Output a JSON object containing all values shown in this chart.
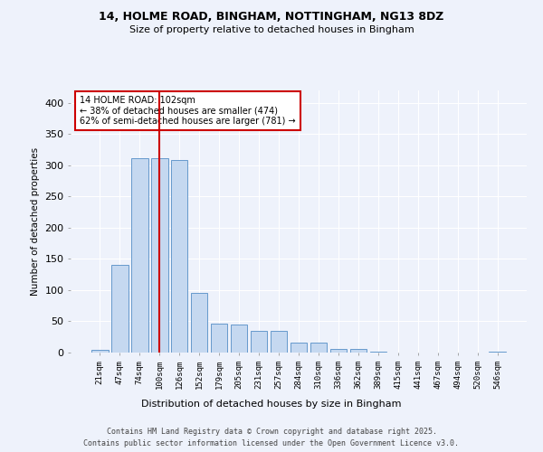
{
  "title_line1": "14, HOLME ROAD, BINGHAM, NOTTINGHAM, NG13 8DZ",
  "title_line2": "Size of property relative to detached houses in Bingham",
  "xlabel": "Distribution of detached houses by size in Bingham",
  "ylabel": "Number of detached properties",
  "categories": [
    "21sqm",
    "47sqm",
    "74sqm",
    "100sqm",
    "126sqm",
    "152sqm",
    "179sqm",
    "205sqm",
    "231sqm",
    "257sqm",
    "284sqm",
    "310sqm",
    "336sqm",
    "362sqm",
    "389sqm",
    "415sqm",
    "441sqm",
    "467sqm",
    "494sqm",
    "520sqm",
    "546sqm"
  ],
  "values": [
    4,
    140,
    312,
    311,
    309,
    95,
    46,
    45,
    35,
    35,
    16,
    16,
    6,
    6,
    2,
    0,
    0,
    0,
    0,
    0,
    2
  ],
  "bar_color": "#c5d8f0",
  "bar_edge_color": "#6699cc",
  "vline_x_index": 3,
  "vline_color": "#cc0000",
  "annotation_text": "14 HOLME ROAD: 102sqm\n← 38% of detached houses are smaller (474)\n62% of semi-detached houses are larger (781) →",
  "annotation_box_edgecolor": "#cc0000",
  "ylim": [
    0,
    420
  ],
  "yticks": [
    0,
    50,
    100,
    150,
    200,
    250,
    300,
    350,
    400
  ],
  "background_color": "#eef2fb",
  "grid_color": "#ffffff",
  "footer_line1": "Contains HM Land Registry data © Crown copyright and database right 2025.",
  "footer_line2": "Contains public sector information licensed under the Open Government Licence v3.0."
}
